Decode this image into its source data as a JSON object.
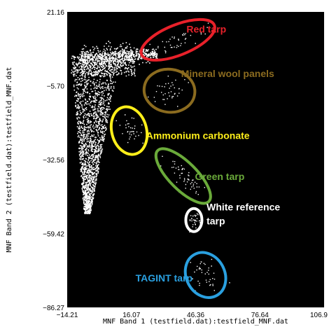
{
  "chart_data": {
    "type": "scatter",
    "title": "",
    "xlabel": "MNF Band 1 (testfield.dat):testfield_MNF.dat",
    "ylabel": "MNF Band 2 (testfield.dat):testfield_MNF.dat",
    "xlim": [
      -14.21,
      106.9
    ],
    "ylim": [
      -86.27,
      21.16
    ],
    "x_ticks": [
      -14.21,
      16.07,
      46.36,
      76.64,
      106.9
    ],
    "x_tick_labels": [
      "−14.21",
      "16.07",
      "46.36",
      "76.64",
      "106.9"
    ],
    "y_ticks": [
      21.16,
      -5.7,
      -32.56,
      -59.42,
      -86.27
    ],
    "y_tick_labels": [
      "21.16",
      "−5.70",
      "−32.56",
      "−59.42",
      "−86.27"
    ],
    "background": "#000000",
    "point_color": "#ffffff",
    "main_cloud": {
      "approx_points": 2600,
      "x_range": [
        -12.5,
        38.0
      ],
      "y_range": [
        -52.0,
        5.0
      ]
    },
    "annotations": [
      {
        "label": "Red tarp",
        "color": "#e8212a",
        "center": [
          38.0,
          11.0
        ],
        "radii": [
          18.5,
          5.5
        ],
        "angle_deg": -22,
        "label_x": 42.0,
        "label_y": 13.7,
        "font_size": 14,
        "points": 45
      },
      {
        "label": "Mineral wool panels",
        "color": "#8b6b1f",
        "center": [
          34.0,
          -7.5
        ],
        "radii": [
          12.0,
          7.8
        ],
        "angle_deg": 8,
        "label_x": 39.5,
        "label_y": -2.5,
        "font_size": 14,
        "points": 40
      },
      {
        "label": "Ammonium carbonate",
        "color": "#ffef1a",
        "center": [
          15.0,
          -22.0
        ],
        "radii": [
          8.2,
          8.8
        ],
        "angle_deg": -15,
        "label_x": 23.0,
        "label_y": -25.0,
        "font_size": 14,
        "points": 35
      },
      {
        "label": "Green tarp",
        "color": "#6aaa3a",
        "center": [
          40.5,
          -38.5
        ],
        "radii": [
          17.0,
          5.0
        ],
        "angle_deg": 45,
        "label_x": 46.0,
        "label_y": -40.0,
        "font_size": 14,
        "points": 55
      },
      {
        "label": "White reference\ntarp",
        "color": "#ffffff",
        "center": [
          45.5,
          -54.5
        ],
        "radii": [
          3.8,
          4.2
        ],
        "angle_deg": 0,
        "label_x": 51.5,
        "label_y": -51.0,
        "font_size": 14,
        "points": 30
      },
      {
        "label": "TAGINT tarp",
        "color": "#2aa0e0",
        "center": [
          51.0,
          -74.5
        ],
        "radii": [
          11.0,
          7.0
        ],
        "angle_deg": 62,
        "label_x": 18.0,
        "label_y": -76.8,
        "font_size": 14,
        "points": 40
      }
    ]
  }
}
